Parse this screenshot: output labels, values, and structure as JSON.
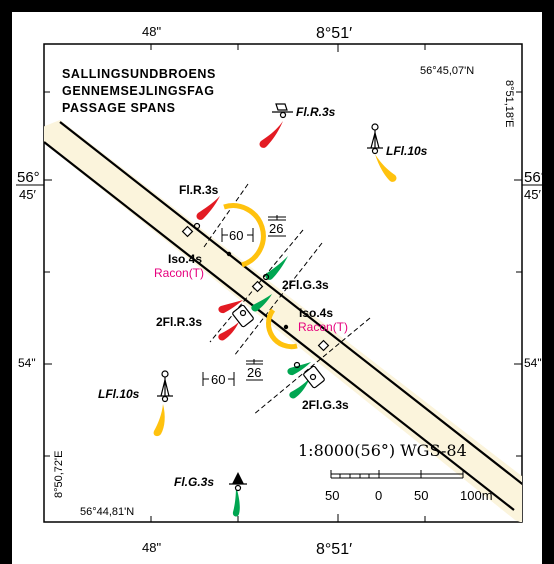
{
  "title_lines": [
    "SALLINGSUNDBROENS",
    "GENNEMSEJLINGSFAG",
    "PASSAGE SPANS"
  ],
  "coords": {
    "top_right": "56°45,07'N",
    "right_top": "8°51,18'E",
    "bottom_left": "56°44,81'N",
    "left_bottom": "8°50,72'E"
  },
  "graticule": {
    "top_48": "48\"",
    "top_851": "8°51′",
    "bottom_48": "48\"",
    "bottom_851": "8°51′",
    "left_56": "56°",
    "left_45": "45′",
    "right_56": "56°",
    "right_45": "45′",
    "left_54": "54\"",
    "right_54": "54\""
  },
  "lights": {
    "fir_top": "Fl.R.3s",
    "lfl_top": "LFl.10s",
    "flr_bridge": "Fl.R.3s",
    "iso_left": "Iso.4s",
    "racon_left": "Racon(T)",
    "fg_top": "2Fl.G.3s",
    "fr_left": "2Fl.R.3s",
    "iso_right": "Iso.4s",
    "racon_right": "Racon(T)",
    "fg_bottom": "2Fl.G.3s",
    "lfl_bottom": "LFl.10s",
    "flg_bottom": "Fl.G.3s"
  },
  "dimensions": {
    "width_top": "60",
    "height_top": "26",
    "width_bottom": "60",
    "height_bottom": "26"
  },
  "scale": {
    "text": "1:8000(56°) WGS-84",
    "ticks": [
      "50",
      "0",
      "50",
      "100m"
    ]
  },
  "colors": {
    "land": "#fbf4dc",
    "red": "#e31b23",
    "green": "#00a651",
    "yellow": "#ffc20e",
    "magenta": "#e6007e"
  }
}
